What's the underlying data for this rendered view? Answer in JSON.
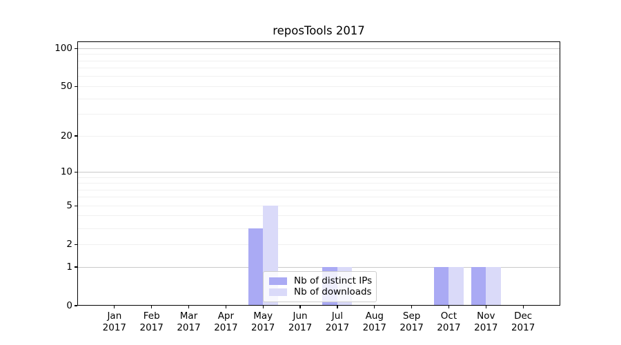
{
  "chart_data": {
    "type": "bar",
    "title": "reposTools 2017",
    "categories": [
      "Jan",
      "Feb",
      "Mar",
      "Apr",
      "May",
      "Jun",
      "Jul",
      "Aug",
      "Sep",
      "Oct",
      "Nov",
      "Dec"
    ],
    "x_tick_year": "2017",
    "series": [
      {
        "name": "Nb of distinct IPs",
        "color": "#aaaaf4",
        "values": [
          0,
          0,
          0,
          0,
          3,
          0,
          1,
          0,
          0,
          1,
          1,
          0
        ]
      },
      {
        "name": "Nb of downloads",
        "color": "#dadaf9",
        "values": [
          0,
          0,
          0,
          0,
          5,
          0,
          1,
          0,
          0,
          1,
          1,
          0
        ]
      }
    ],
    "xlabel": "",
    "ylabel": "",
    "yscale": "log10(1+v)",
    "ylim": [
      0,
      113
    ],
    "y_ticks": [
      0,
      1,
      2,
      5,
      10,
      20,
      50,
      100
    ],
    "grid": "horizontal",
    "grid_major_values": [
      1,
      10,
      100
    ],
    "grid_minor_values": [
      2,
      3,
      4,
      5,
      6,
      7,
      8,
      9,
      20,
      30,
      40,
      50,
      60,
      70,
      80,
      90
    ],
    "legend_position": "lower center (inside plot)",
    "colors": {
      "grid_major": "#c9c9c9",
      "grid_minor": "#f0f0f0",
      "spine": "#000000",
      "background": "#ffffff"
    }
  }
}
